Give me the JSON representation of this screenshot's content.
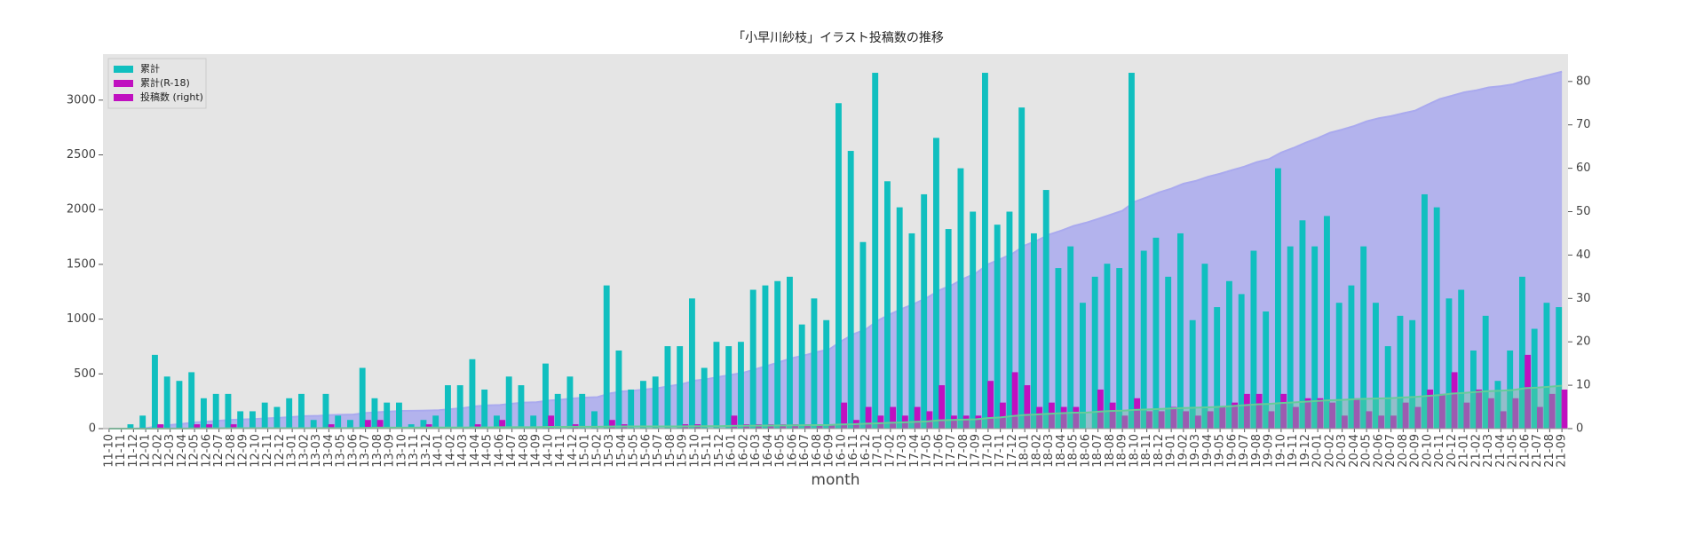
{
  "chart_data": {
    "type": "bar",
    "title": "「小早川紗枝」イラスト投稿数の推移",
    "xlabel": "month",
    "categories": [
      "11-10",
      "11-11",
      "11-12",
      "12-01",
      "12-02",
      "12-03",
      "12-04",
      "12-05",
      "12-06",
      "12-07",
      "12-08",
      "12-09",
      "12-10",
      "12-11",
      "12-12",
      "13-01",
      "13-02",
      "13-03",
      "13-04",
      "13-05",
      "13-06",
      "13-07",
      "13-08",
      "13-09",
      "13-10",
      "13-11",
      "13-12",
      "14-01",
      "14-02",
      "14-03",
      "14-04",
      "14-05",
      "14-06",
      "14-07",
      "14-08",
      "14-09",
      "14-10",
      "14-11",
      "14-12",
      "15-01",
      "15-02",
      "15-03",
      "15-04",
      "15-05",
      "15-06",
      "15-07",
      "15-08",
      "15-09",
      "15-10",
      "15-11",
      "15-12",
      "16-01",
      "16-02",
      "16-03",
      "16-04",
      "16-05",
      "16-06",
      "16-07",
      "16-08",
      "16-09",
      "16-10",
      "16-11",
      "16-12",
      "17-01",
      "17-02",
      "17-03",
      "17-04",
      "17-05",
      "17-06",
      "17-07",
      "17-08",
      "17-09",
      "17-10",
      "17-11",
      "17-12",
      "18-01",
      "18-02",
      "18-03",
      "18-04",
      "18-05",
      "18-06",
      "18-07",
      "18-08",
      "18-09",
      "18-10",
      "18-11",
      "18-12",
      "19-01",
      "19-02",
      "19-03",
      "19-04",
      "19-05",
      "19-06",
      "19-07",
      "19-08",
      "19-09",
      "19-10",
      "19-11",
      "19-12",
      "20-01",
      "20-02",
      "20-03",
      "20-04",
      "20-05",
      "20-06",
      "20-07",
      "20-08",
      "20-09",
      "20-10",
      "20-11",
      "20-12",
      "21-01",
      "21-02",
      "21-03",
      "21-04",
      "21-05",
      "21-06",
      "21-07",
      "21-08",
      "21-09"
    ],
    "series": [
      {
        "type": "area",
        "color": "#aaaaee",
        "values": [
          0,
          0,
          1,
          4,
          21,
          33,
          44,
          57,
          64,
          72,
          80,
          84,
          88,
          94,
          99,
          106,
          114,
          116,
          124,
          127,
          129,
          143,
          150,
          156,
          162,
          163,
          165,
          168,
          178,
          188,
          204,
          213,
          216,
          228,
          238,
          241,
          256,
          264,
          276,
          284,
          288,
          321,
          339,
          348,
          359,
          371,
          390,
          409,
          439,
          453,
          473,
          492,
          512,
          544,
          577,
          611,
          646,
          670,
          700,
          725,
          800,
          864,
          907,
          989,
          1046,
          1097,
          1142,
          1196,
          1263,
          1309,
          1369,
          1419,
          1501,
          1548,
          1598,
          1672,
          1717,
          1772,
          1809,
          1851,
          1880,
          1915,
          1953,
          1990,
          2072,
          2113,
          2157,
          2192,
          2237,
          2262,
          2300,
          2328,
          2362,
          2393,
          2434,
          2461,
          2521,
          2563,
          2611,
          2653,
          2702,
          2731,
          2764,
          2806,
          2835,
          2854,
          2880,
          2905,
          2959,
          3010,
          3040,
          3072,
          3090,
          3116,
          3127,
          3145,
          3180,
          3203,
          3232,
          3260
        ]
      },
      {
        "type": "bar",
        "axis": "y2",
        "color": "#10bfbf",
        "values": [
          0,
          0,
          1,
          3,
          17,
          12,
          11,
          13,
          7,
          8,
          8,
          4,
          4,
          6,
          5,
          7,
          8,
          2,
          8,
          3,
          2,
          14,
          7,
          6,
          6,
          1,
          2,
          3,
          10,
          10,
          16,
          9,
          3,
          12,
          10,
          3,
          15,
          8,
          12,
          8,
          4,
          33,
          18,
          9,
          11,
          12,
          19,
          19,
          30,
          14,
          20,
          19,
          20,
          32,
          33,
          34,
          35,
          24,
          30,
          25,
          75,
          64,
          43,
          82,
          57,
          51,
          45,
          54,
          67,
          46,
          60,
          50,
          82,
          47,
          50,
          74,
          45,
          55,
          37,
          42,
          29,
          35,
          38,
          37,
          82,
          41,
          44,
          35,
          45,
          25,
          38,
          28,
          34,
          31,
          41,
          27,
          60,
          42,
          48,
          42,
          49,
          29,
          33,
          42,
          29,
          19,
          26,
          25,
          54,
          51,
          30,
          32,
          18,
          26,
          11,
          18,
          35,
          23,
          29,
          28
        ]
      },
      {
        "type": "bar",
        "axis": "y2",
        "color": "#c010c0",
        "values": [
          0,
          0,
          0,
          0,
          1,
          0,
          0,
          1,
          1,
          0,
          1,
          0,
          0,
          0,
          0,
          0,
          0,
          0,
          1,
          0,
          0,
          2,
          2,
          0,
          0,
          0,
          1,
          0,
          0,
          0,
          1,
          0,
          2,
          0,
          0,
          0,
          3,
          0,
          1,
          0,
          0,
          2,
          1,
          0,
          0,
          0,
          0,
          1,
          1,
          0,
          0,
          3,
          1,
          1,
          1,
          1,
          1,
          1,
          1,
          1,
          6,
          2,
          5,
          3,
          5,
          3,
          5,
          4,
          10,
          3,
          3,
          3,
          11,
          6,
          13,
          10,
          5,
          6,
          5,
          5,
          0,
          9,
          6,
          3,
          7,
          4,
          4,
          5,
          4,
          3,
          4,
          5,
          6,
          8,
          8,
          4,
          8,
          5,
          7,
          7,
          6,
          3,
          7,
          4,
          3,
          3,
          6,
          5,
          9,
          8,
          13,
          6,
          9,
          7,
          4,
          7,
          17,
          5,
          8,
          9
        ]
      },
      {
        "type": "area",
        "color": "#66cc99",
        "values": [
          0,
          0,
          0,
          0,
          1,
          1,
          1,
          2,
          3,
          3,
          4,
          4,
          4,
          4,
          4,
          4,
          4,
          4,
          5,
          5,
          5,
          7,
          9,
          9,
          9,
          9,
          10,
          10,
          10,
          10,
          11,
          11,
          13,
          13,
          13,
          13,
          16,
          16,
          17,
          17,
          17,
          19,
          20,
          20,
          20,
          20,
          20,
          21,
          22,
          22,
          22,
          25,
          26,
          27,
          28,
          29,
          30,
          31,
          32,
          33,
          39,
          41,
          46,
          49,
          54,
          57,
          62,
          66,
          76,
          79,
          82,
          85,
          96,
          102,
          115,
          125,
          130,
          136,
          141,
          146,
          146,
          155,
          161,
          164,
          171,
          175,
          179,
          184,
          188,
          191,
          195,
          200,
          206,
          214,
          222,
          226,
          234,
          239,
          246,
          253,
          259,
          262,
          269,
          273,
          276,
          279,
          285,
          290,
          299,
          307,
          320,
          326,
          335,
          342,
          346,
          353,
          370,
          375,
          383,
          392
        ]
      }
    ],
    "legend": {
      "loc": "upper left",
      "entries": [
        {
          "name": "累計",
          "color": "#10bfbf"
        },
        {
          "name": "累計(R-18)",
          "color": "#c010c0"
        },
        {
          "name": "投稿数 (right)",
          "color": "#c010c0"
        }
      ]
    },
    "ylim": [
      0,
      3420
    ],
    "yticks": [
      0,
      500,
      1000,
      1500,
      2000,
      2500,
      3000
    ],
    "y2lim": [
      0,
      86.3
    ],
    "y2ticks": [
      0,
      10,
      20,
      30,
      40,
      50,
      60,
      70,
      80
    ]
  }
}
